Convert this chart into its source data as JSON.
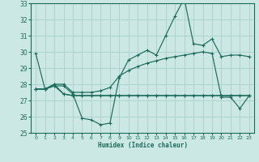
{
  "xlabel": "Humidex (Indice chaleur)",
  "xlim": [
    -0.5,
    23.5
  ],
  "ylim": [
    25,
    33
  ],
  "yticks": [
    25,
    26,
    27,
    28,
    29,
    30,
    31,
    32,
    33
  ],
  "xticks": [
    0,
    1,
    2,
    3,
    4,
    5,
    6,
    7,
    8,
    9,
    10,
    11,
    12,
    13,
    14,
    15,
    16,
    17,
    18,
    19,
    20,
    21,
    22,
    23
  ],
  "bg_color": "#cce8e4",
  "grid_color": "#aacfcc",
  "line_color": "#1a6b5a",
  "line1_y": [
    29.9,
    27.7,
    27.9,
    27.9,
    27.4,
    25.9,
    25.8,
    25.5,
    25.6,
    28.4,
    29.5,
    29.8,
    30.1,
    29.8,
    31.0,
    32.2,
    33.3,
    30.5,
    30.4,
    30.8,
    29.7,
    29.8,
    29.8,
    29.7
  ],
  "line2_y": [
    27.7,
    27.7,
    27.9,
    27.4,
    27.3,
    27.3,
    27.3,
    27.3,
    27.3,
    27.3,
    27.3,
    27.3,
    27.3,
    27.3,
    27.3,
    27.3,
    27.3,
    27.3,
    27.3,
    27.3,
    27.3,
    27.3,
    27.3,
    27.3
  ],
  "line3_y": [
    27.7,
    27.7,
    28.0,
    28.0,
    27.5,
    27.5,
    27.5,
    27.6,
    27.8,
    28.5,
    28.85,
    29.1,
    29.3,
    29.45,
    29.6,
    29.7,
    29.8,
    29.9,
    30.0,
    29.9,
    27.2,
    27.2,
    26.5,
    27.3
  ],
  "line4_y": [
    27.7,
    27.7,
    28.0,
    27.4,
    27.3,
    27.3,
    27.3,
    27.3,
    27.3,
    27.3,
    27.3,
    27.3,
    27.3,
    27.3,
    27.3,
    27.3,
    27.3,
    27.3,
    27.3,
    27.3,
    27.3,
    27.3,
    27.3,
    27.3
  ]
}
